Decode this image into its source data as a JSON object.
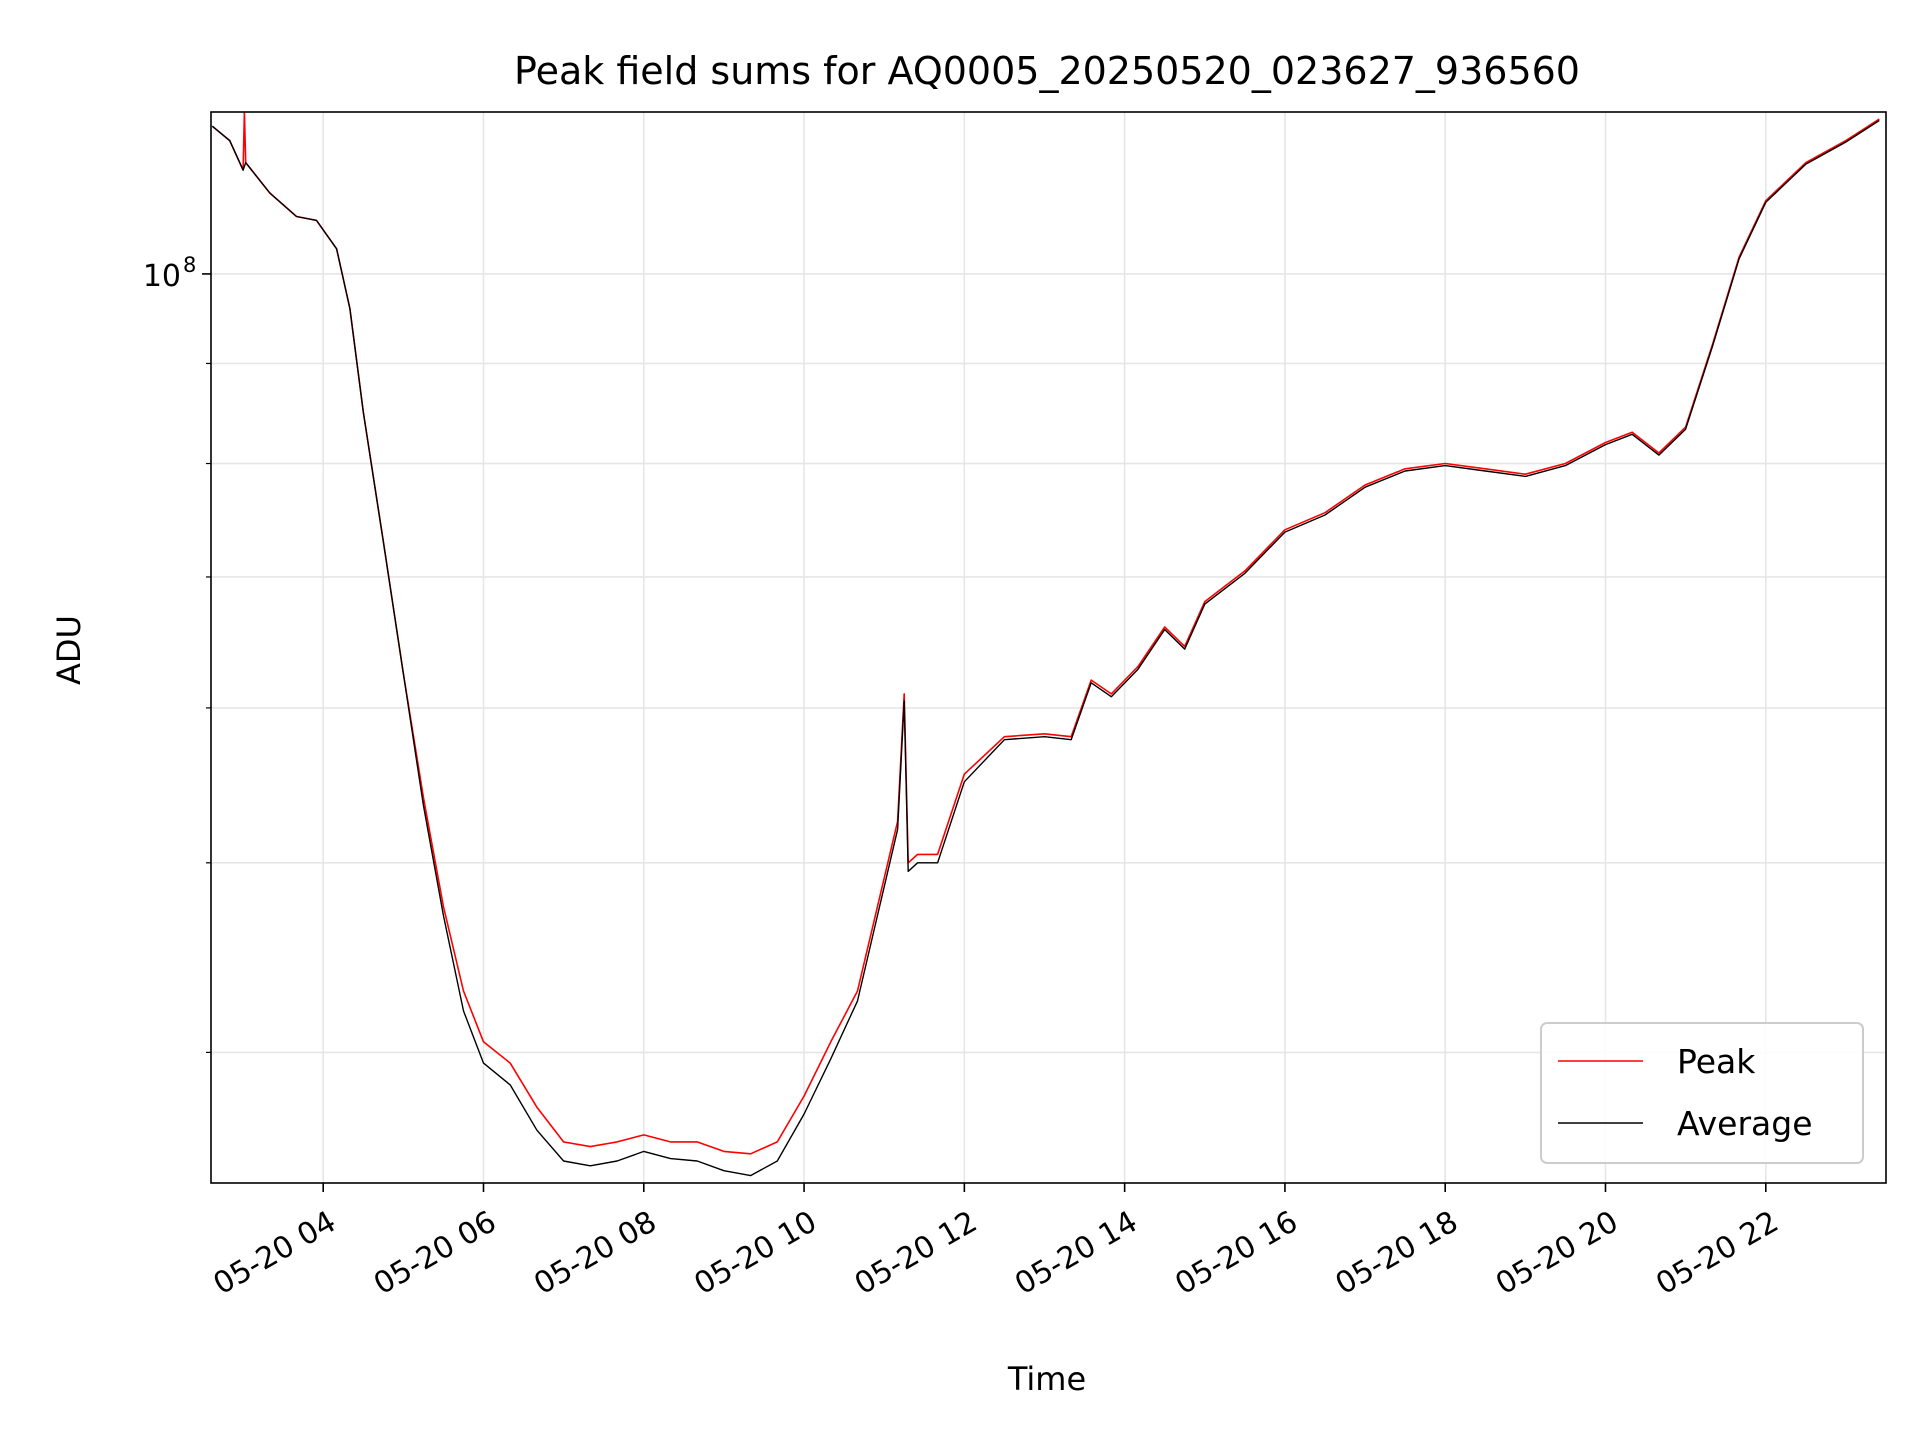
{
  "chart_data": {
    "type": "line",
    "title": "Peak field sums for AQ0005_20250520_023627_936560",
    "xlabel": "Time",
    "ylabel": "ADU",
    "yscale": "log",
    "xlim": [
      "2025-05-20 02:36",
      "2025-05-20 23:30"
    ],
    "ylim": [
      34300000.0,
      121000000.0
    ],
    "grid": true,
    "legend_position": "lower-right",
    "x_ticks": [
      "05-20 04",
      "05-20 06",
      "05-20 08",
      "05-20 10",
      "05-20 12",
      "05-20 14",
      "05-20 16",
      "05-20 18",
      "05-20 20",
      "05-20 22"
    ],
    "y_ticks": [
      {
        "value": 100000000,
        "label": "10",
        "sup": "8"
      }
    ],
    "y_minor_ticks": [
      40000000,
      50000000,
      60000000,
      70000000,
      80000000,
      90000000
    ],
    "series": [
      {
        "name": "Peak",
        "color": "#ff0000",
        "points": [
          [
            "2025-05-20 02:37",
            119000000.0
          ],
          [
            "2025-05-20 02:50",
            117000000.0
          ],
          [
            "2025-05-20 03:00",
            113000000.0
          ],
          [
            "2025-05-20 03:01",
            121000000.0
          ],
          [
            "2025-05-20 03:02",
            114000000.0
          ],
          [
            "2025-05-20 03:20",
            110000000.0
          ],
          [
            "2025-05-20 03:40",
            107000000.0
          ],
          [
            "2025-05-20 03:55",
            106500000.0
          ],
          [
            "2025-05-20 04:10",
            103000000.0
          ],
          [
            "2025-05-20 04:20",
            96000000.0
          ],
          [
            "2025-05-20 04:30",
            85000000.0
          ],
          [
            "2025-05-20 04:45",
            73000000.0
          ],
          [
            "2025-05-20 05:00",
            62500000.0
          ],
          [
            "2025-05-20 05:15",
            54000000.0
          ],
          [
            "2025-05-20 05:30",
            47500000.0
          ],
          [
            "2025-05-20 05:45",
            43000000.0
          ],
          [
            "2025-05-20 06:00",
            40500000.0
          ],
          [
            "2025-05-20 06:20",
            39500000.0
          ],
          [
            "2025-05-20 06:40",
            37500000.0
          ],
          [
            "2025-05-20 07:00",
            36000000.0
          ],
          [
            "2025-05-20 07:20",
            35800000.0
          ],
          [
            "2025-05-20 07:40",
            36000000.0
          ],
          [
            "2025-05-20 08:00",
            36300000.0
          ],
          [
            "2025-05-20 08:20",
            36000000.0
          ],
          [
            "2025-05-20 08:40",
            36000000.0
          ],
          [
            "2025-05-20 09:00",
            35600000.0
          ],
          [
            "2025-05-20 09:20",
            35500000.0
          ],
          [
            "2025-05-20 09:40",
            36000000.0
          ],
          [
            "2025-05-20 10:00",
            38000000.0
          ],
          [
            "2025-05-20 10:20",
            40500000.0
          ],
          [
            "2025-05-20 10:40",
            43000000.0
          ],
          [
            "2025-05-20 10:55",
            47500000.0
          ],
          [
            "2025-05-20 11:10",
            52500000.0
          ],
          [
            "2025-05-20 11:15",
            61000000.0
          ],
          [
            "2025-05-20 11:18",
            50000000.0
          ],
          [
            "2025-05-20 11:25",
            50500000.0
          ],
          [
            "2025-05-20 11:40",
            50500000.0
          ],
          [
            "2025-05-20 12:00",
            55500000.0
          ],
          [
            "2025-05-20 12:30",
            58000000.0
          ],
          [
            "2025-05-20 13:00",
            58200000.0
          ],
          [
            "2025-05-20 13:20",
            58000000.0
          ],
          [
            "2025-05-20 13:35",
            62000000.0
          ],
          [
            "2025-05-20 13:50",
            61000000.0
          ],
          [
            "2025-05-20 14:10",
            63000000.0
          ],
          [
            "2025-05-20 14:30",
            66000000.0
          ],
          [
            "2025-05-20 14:45",
            64500000.0
          ],
          [
            "2025-05-20 15:00",
            68000000.0
          ],
          [
            "2025-05-20 15:30",
            70500000.0
          ],
          [
            "2025-05-20 16:00",
            74000000.0
          ],
          [
            "2025-05-20 16:30",
            75500000.0
          ],
          [
            "2025-05-20 17:00",
            78000000.0
          ],
          [
            "2025-05-20 17:30",
            79500000.0
          ],
          [
            "2025-05-20 18:00",
            80000000.0
          ],
          [
            "2025-05-20 18:30",
            79500000.0
          ],
          [
            "2025-05-20 19:00",
            79000000.0
          ],
          [
            "2025-05-20 19:30",
            80000000.0
          ],
          [
            "2025-05-20 20:00",
            82000000.0
          ],
          [
            "2025-05-20 20:20",
            83000000.0
          ],
          [
            "2025-05-20 20:40",
            81000000.0
          ],
          [
            "2025-05-20 21:00",
            83500000.0
          ],
          [
            "2025-05-20 21:20",
            92000000.0
          ],
          [
            "2025-05-20 21:40",
            102000000.0
          ],
          [
            "2025-05-20 22:00",
            109000000.0
          ],
          [
            "2025-05-20 22:30",
            114000000.0
          ],
          [
            "2025-05-20 23:00",
            117000000.0
          ],
          [
            "2025-05-20 23:25",
            120000000.0
          ]
        ]
      },
      {
        "name": "Average",
        "color": "#000000",
        "points": [
          [
            "2025-05-20 02:37",
            119000000.0
          ],
          [
            "2025-05-20 02:50",
            117000000.0
          ],
          [
            "2025-05-20 03:00",
            113000000.0
          ],
          [
            "2025-05-20 03:02",
            114000000.0
          ],
          [
            "2025-05-20 03:20",
            110000000.0
          ],
          [
            "2025-05-20 03:40",
            107000000.0
          ],
          [
            "2025-05-20 03:55",
            106500000.0
          ],
          [
            "2025-05-20 04:10",
            103000000.0
          ],
          [
            "2025-05-20 04:20",
            96000000.0
          ],
          [
            "2025-05-20 04:30",
            85000000.0
          ],
          [
            "2025-05-20 04:45",
            73000000.0
          ],
          [
            "2025-05-20 05:00",
            62500000.0
          ],
          [
            "2025-05-20 05:15",
            53500000.0
          ],
          [
            "2025-05-20 05:30",
            47000000.0
          ],
          [
            "2025-05-20 05:45",
            42000000.0
          ],
          [
            "2025-05-20 06:00",
            39500000.0
          ],
          [
            "2025-05-20 06:20",
            38500000.0
          ],
          [
            "2025-05-20 06:40",
            36500000.0
          ],
          [
            "2025-05-20 07:00",
            35200000.0
          ],
          [
            "2025-05-20 07:20",
            35000000.0
          ],
          [
            "2025-05-20 07:40",
            35200000.0
          ],
          [
            "2025-05-20 08:00",
            35600000.0
          ],
          [
            "2025-05-20 08:20",
            35300000.0
          ],
          [
            "2025-05-20 08:40",
            35200000.0
          ],
          [
            "2025-05-20 09:00",
            34800000.0
          ],
          [
            "2025-05-20 09:20",
            34600000.0
          ],
          [
            "2025-05-20 09:40",
            35200000.0
          ],
          [
            "2025-05-20 10:00",
            37200000.0
          ],
          [
            "2025-05-20 10:20",
            39700000.0
          ],
          [
            "2025-05-20 10:40",
            42500000.0
          ],
          [
            "2025-05-20 10:55",
            47000000.0
          ],
          [
            "2025-05-20 11:10",
            52000000.0
          ],
          [
            "2025-05-20 11:15",
            60500000.0
          ],
          [
            "2025-05-20 11:18",
            49500000.0
          ],
          [
            "2025-05-20 11:25",
            50000000.0
          ],
          [
            "2025-05-20 11:40",
            50000000.0
          ],
          [
            "2025-05-20 12:00",
            55000000.0
          ],
          [
            "2025-05-20 12:30",
            57800000.0
          ],
          [
            "2025-05-20 13:00",
            58000000.0
          ],
          [
            "2025-05-20 13:20",
            57800000.0
          ],
          [
            "2025-05-20 13:35",
            61800000.0
          ],
          [
            "2025-05-20 13:50",
            60800000.0
          ],
          [
            "2025-05-20 14:10",
            62800000.0
          ],
          [
            "2025-05-20 14:30",
            65800000.0
          ],
          [
            "2025-05-20 14:45",
            64300000.0
          ],
          [
            "2025-05-20 15:00",
            67800000.0
          ],
          [
            "2025-05-20 15:30",
            70300000.0
          ],
          [
            "2025-05-20 16:00",
            73800000.0
          ],
          [
            "2025-05-20 16:30",
            75300000.0
          ],
          [
            "2025-05-20 17:00",
            77800000.0
          ],
          [
            "2025-05-20 17:30",
            79300000.0
          ],
          [
            "2025-05-20 18:00",
            79800000.0
          ],
          [
            "2025-05-20 18:30",
            79300000.0
          ],
          [
            "2025-05-20 19:00",
            78800000.0
          ],
          [
            "2025-05-20 19:30",
            79800000.0
          ],
          [
            "2025-05-20 20:00",
            81800000.0
          ],
          [
            "2025-05-20 20:20",
            82800000.0
          ],
          [
            "2025-05-20 20:40",
            80800000.0
          ],
          [
            "2025-05-20 21:00",
            83300000.0
          ],
          [
            "2025-05-20 21:20",
            91800000.0
          ],
          [
            "2025-05-20 21:40",
            101800000.0
          ],
          [
            "2025-05-20 22:00",
            108800000.0
          ],
          [
            "2025-05-20 22:30",
            113800000.0
          ],
          [
            "2025-05-20 23:00",
            116800000.0
          ],
          [
            "2025-05-20 23:25",
            119800000.0
          ]
        ]
      }
    ]
  }
}
